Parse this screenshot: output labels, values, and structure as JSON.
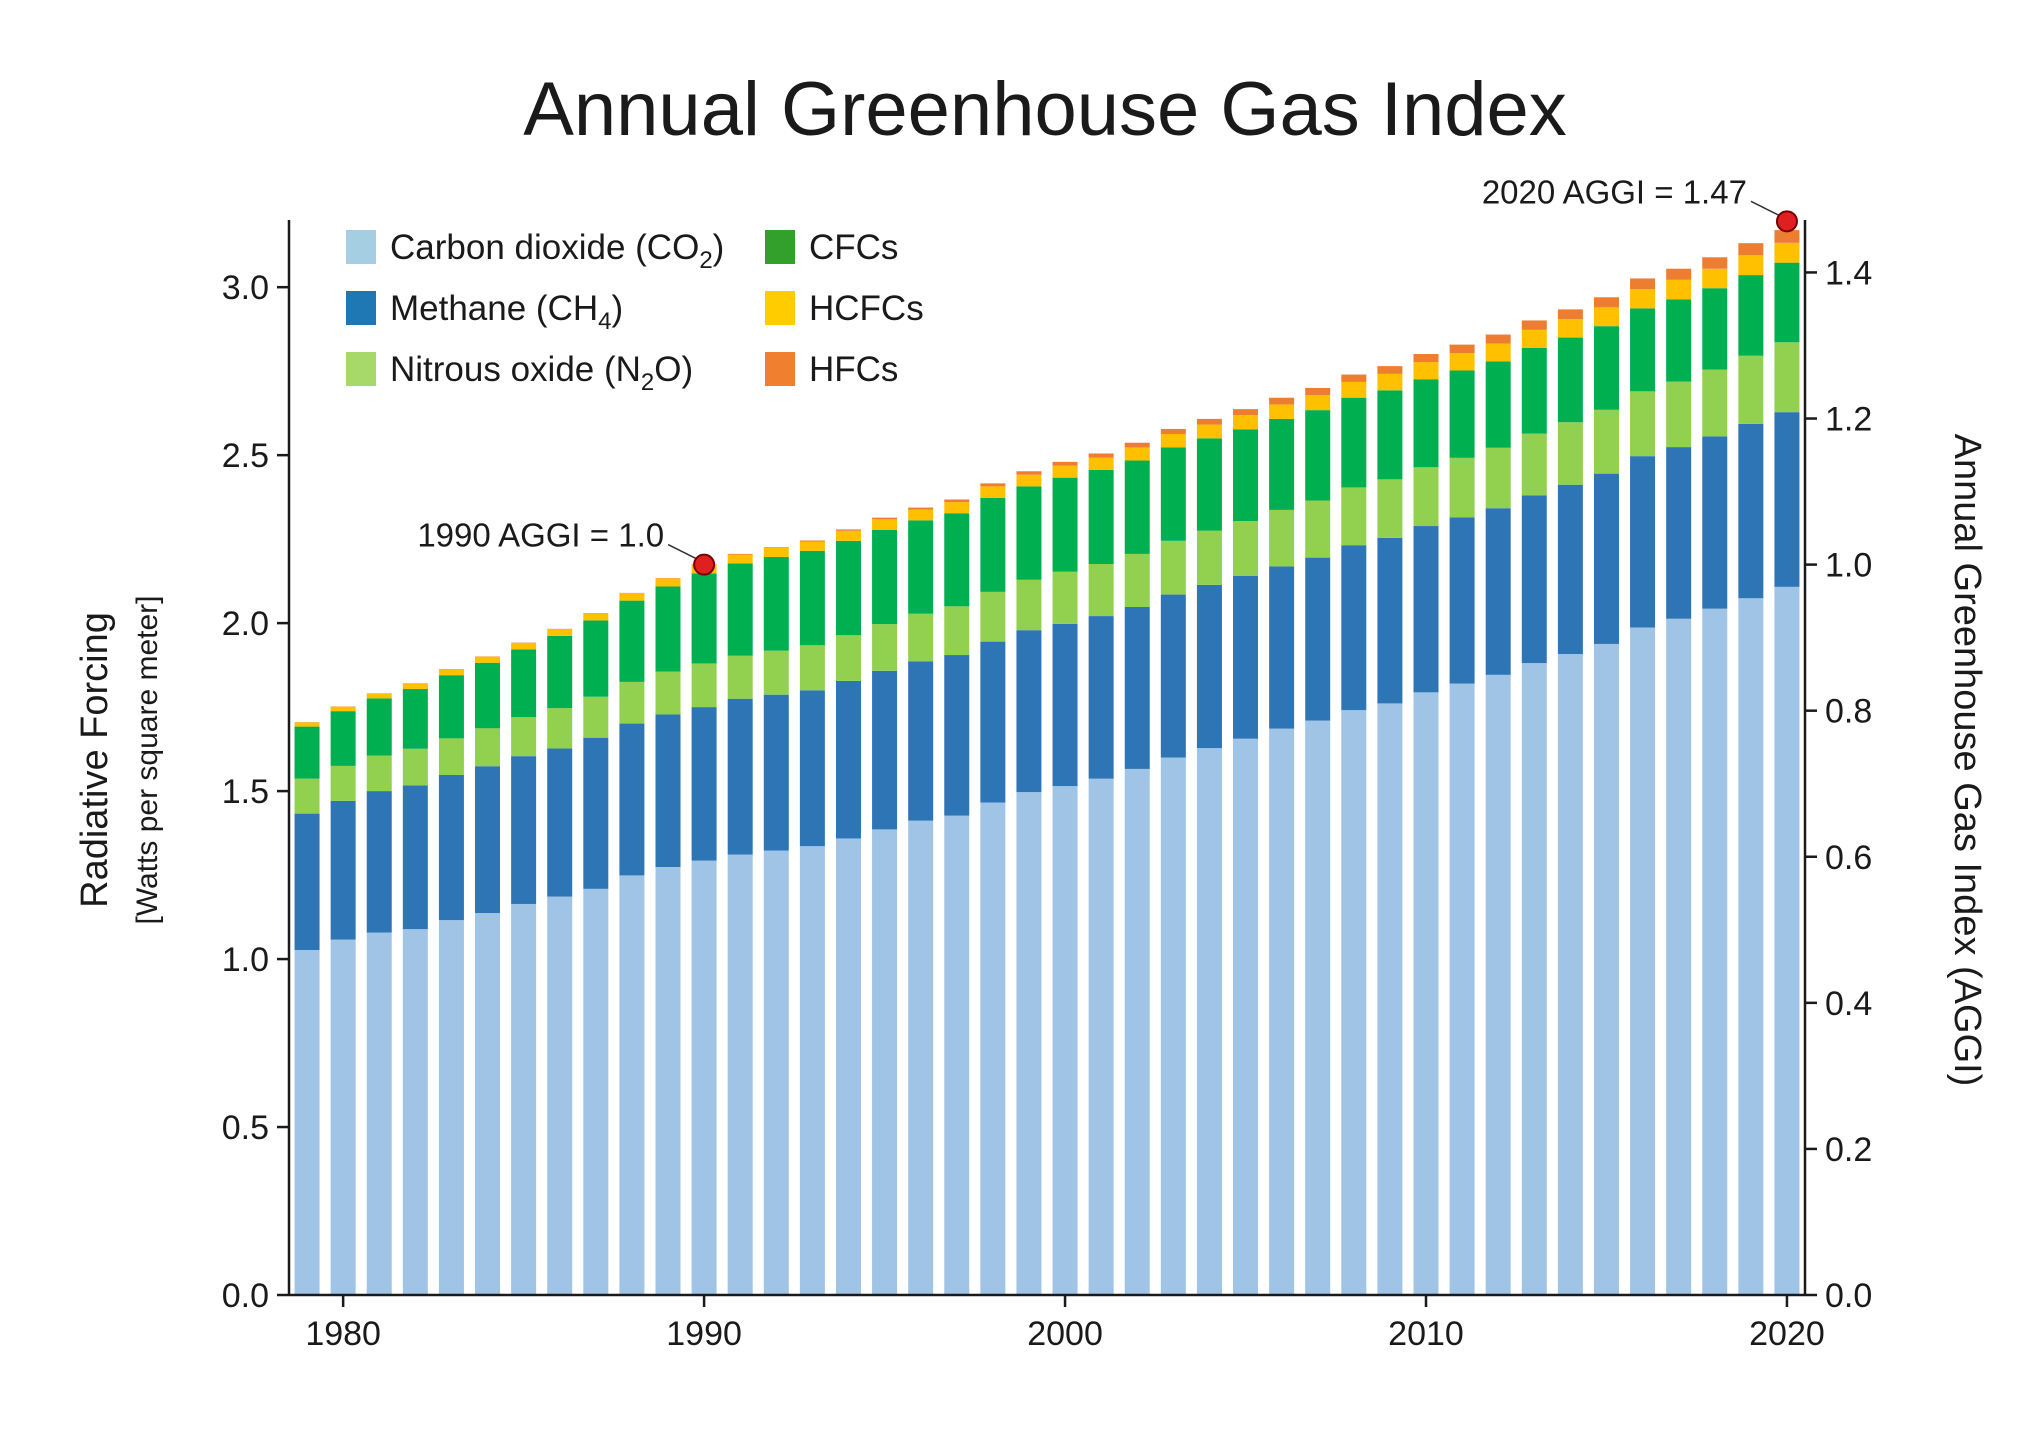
{
  "chart_data": {
    "type": "bar",
    "stacked": true,
    "title": "Annual Greenhouse Gas Index",
    "ylabel": "Radiative Forcing",
    "ylabel_sub": "[Watts per square meter]",
    "y2label": "Annual Greenhouse Gas Index (AGGI)",
    "ylim": [
      0,
      3.2
    ],
    "y2lim": [
      0,
      1.4718
    ],
    "xlim": [
      1978.5,
      2020.5
    ],
    "yticks": [
      "0.0",
      "0.5",
      "1.0",
      "1.5",
      "2.0",
      "2.5",
      "3.0"
    ],
    "y2ticks": [
      "0.0",
      "0.2",
      "0.4",
      "0.6",
      "0.8",
      "1.0",
      "1.2",
      "1.4"
    ],
    "xticks": [
      "1980",
      "1990",
      "2000",
      "2010",
      "2020"
    ],
    "grid": false,
    "legend_position": "top-left",
    "legend": [
      {
        "name": "Carbon dioxide (CO",
        "sub": "2",
        "suffix": ")",
        "color": "#a6cee3"
      },
      {
        "name": "Methane (CH",
        "sub": "4",
        "suffix": ")",
        "color": "#1f78b4"
      },
      {
        "name": "Nitrous oxide (N",
        "sub": "2",
        "suffix": "O)",
        "color": "#a6d96a"
      },
      {
        "name": "CFCs",
        "sub": "",
        "suffix": "",
        "color": "#33a02c"
      },
      {
        "name": "HCFCs",
        "sub": "",
        "suffix": "",
        "color": "#ffcc00"
      },
      {
        "name": "HFCs",
        "sub": "",
        "suffix": "",
        "color": "#f08030"
      }
    ],
    "x": [
      1979,
      1980,
      1981,
      1982,
      1983,
      1984,
      1985,
      1986,
      1987,
      1988,
      1989,
      1990,
      1991,
      1992,
      1993,
      1994,
      1995,
      1996,
      1997,
      1998,
      1999,
      2000,
      2001,
      2002,
      2003,
      2004,
      2005,
      2006,
      2007,
      2008,
      2009,
      2010,
      2011,
      2012,
      2013,
      2014,
      2015,
      2016,
      2017,
      2018,
      2019,
      2020
    ],
    "series": [
      {
        "name": "Carbon dioxide (CO2)",
        "color": "#9fc4e6",
        "values": [
          1.027,
          1.058,
          1.079,
          1.089,
          1.116,
          1.137,
          1.164,
          1.186,
          1.209,
          1.249,
          1.274,
          1.293,
          1.311,
          1.323,
          1.336,
          1.359,
          1.386,
          1.412,
          1.427,
          1.466,
          1.497,
          1.515,
          1.537,
          1.566,
          1.6,
          1.628,
          1.656,
          1.686,
          1.71,
          1.741,
          1.761,
          1.794,
          1.82,
          1.846,
          1.881,
          1.908,
          1.938,
          1.987,
          2.013,
          2.043,
          2.074,
          2.108
        ]
      },
      {
        "name": "Methane (CH4)",
        "color": "#2e75b6",
        "values": [
          0.406,
          0.413,
          0.421,
          0.428,
          0.432,
          0.437,
          0.44,
          0.441,
          0.45,
          0.452,
          0.454,
          0.457,
          0.464,
          0.464,
          0.464,
          0.469,
          0.472,
          0.474,
          0.478,
          0.479,
          0.482,
          0.483,
          0.484,
          0.482,
          0.485,
          0.486,
          0.485,
          0.483,
          0.485,
          0.491,
          0.493,
          0.495,
          0.495,
          0.496,
          0.499,
          0.504,
          0.507,
          0.51,
          0.511,
          0.513,
          0.519,
          0.52
        ]
      },
      {
        "name": "Nitrous oxide (N2O)",
        "color": "#92d050",
        "values": [
          0.104,
          0.104,
          0.106,
          0.109,
          0.109,
          0.113,
          0.116,
          0.12,
          0.122,
          0.124,
          0.128,
          0.13,
          0.128,
          0.131,
          0.134,
          0.136,
          0.139,
          0.142,
          0.145,
          0.148,
          0.15,
          0.155,
          0.155,
          0.158,
          0.16,
          0.161,
          0.163,
          0.168,
          0.17,
          0.172,
          0.174,
          0.175,
          0.177,
          0.18,
          0.184,
          0.186,
          0.19,
          0.193,
          0.195,
          0.199,
          0.203,
          0.208
        ]
      },
      {
        "name": "CFCs",
        "color": "#00b050",
        "values": [
          0.155,
          0.163,
          0.17,
          0.178,
          0.188,
          0.195,
          0.202,
          0.215,
          0.227,
          0.242,
          0.253,
          0.268,
          0.275,
          0.279,
          0.281,
          0.281,
          0.281,
          0.278,
          0.277,
          0.28,
          0.278,
          0.28,
          0.28,
          0.278,
          0.278,
          0.275,
          0.273,
          0.271,
          0.269,
          0.267,
          0.265,
          0.262,
          0.26,
          0.257,
          0.255,
          0.252,
          0.249,
          0.247,
          0.245,
          0.242,
          0.24,
          0.237
        ]
      },
      {
        "name": "HCFCs",
        "color": "#ffc000",
        "values": [
          0.012,
          0.013,
          0.014,
          0.016,
          0.017,
          0.018,
          0.019,
          0.02,
          0.021,
          0.022,
          0.024,
          0.025,
          0.026,
          0.027,
          0.028,
          0.03,
          0.031,
          0.032,
          0.033,
          0.034,
          0.035,
          0.036,
          0.037,
          0.039,
          0.04,
          0.041,
          0.042,
          0.043,
          0.045,
          0.047,
          0.049,
          0.051,
          0.052,
          0.053,
          0.054,
          0.055,
          0.056,
          0.057,
          0.058,
          0.058,
          0.059,
          0.059
        ]
      },
      {
        "name": "HFCs",
        "color": "#ed7d31",
        "values": [
          0.001,
          0.001,
          0.001,
          0.001,
          0.001,
          0.001,
          0.001,
          0.001,
          0.001,
          0.001,
          0.001,
          0.002,
          0.002,
          0.002,
          0.003,
          0.004,
          0.005,
          0.006,
          0.008,
          0.009,
          0.01,
          0.011,
          0.012,
          0.014,
          0.015,
          0.017,
          0.018,
          0.02,
          0.021,
          0.022,
          0.023,
          0.024,
          0.025,
          0.027,
          0.028,
          0.029,
          0.03,
          0.032,
          0.033,
          0.034,
          0.036,
          0.038
        ]
      }
    ],
    "annotations": [
      {
        "text": "1990 AGGI = 1.0",
        "year": 1990,
        "aggi": 1.0
      },
      {
        "text": "2020 AGGI = 1.47",
        "year": 2020,
        "aggi": 1.47
      }
    ]
  }
}
